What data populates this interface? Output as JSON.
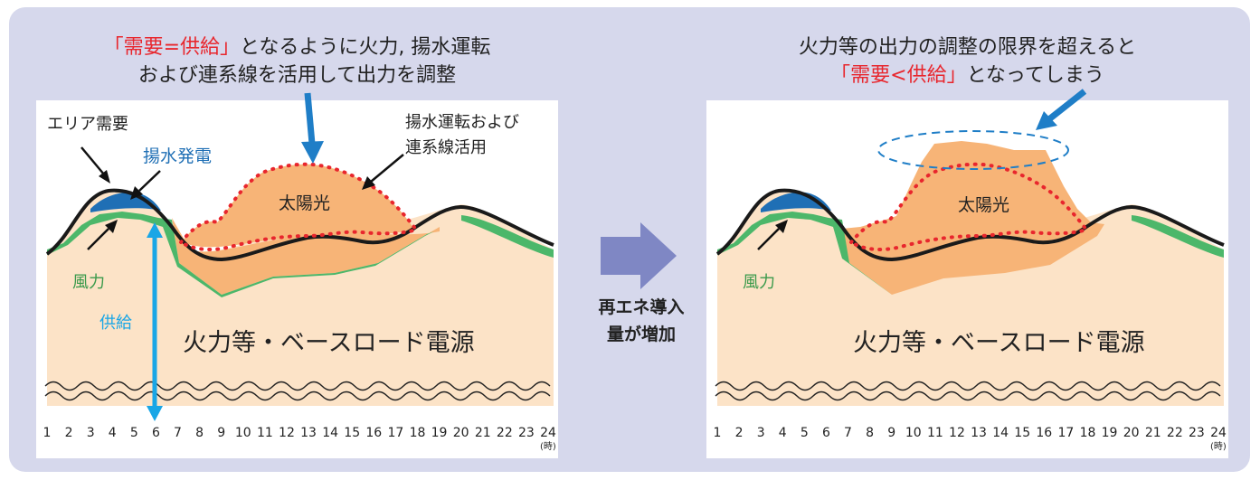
{
  "left": {
    "caption": {
      "line1_red": "「需要=供給」",
      "line1_rest": "となるように火力, 揚水運転",
      "line2": "および連系線を活用して出力を調整"
    },
    "labels": {
      "area_demand": "エリア需要",
      "pumped_generation": "揚水発電",
      "pumped_operation_line1": "揚水運転および",
      "pumped_operation_line2": "連系線活用",
      "solar": "太陽光",
      "wind": "風力",
      "supply": "供給",
      "thermal": "火力等・ベースロード電源"
    }
  },
  "middle": {
    "line1": "再エネ導入",
    "line2": "量が増加"
  },
  "right": {
    "caption": {
      "line1": "火力等の出力の調整の限界を超えると",
      "line2_red": "「需要<供給」",
      "line2_rest": "となってしまう"
    },
    "labels": {
      "solar": "太陽光",
      "wind": "風力",
      "thermal": "火力等・ベースロード電源"
    }
  },
  "axis": {
    "hours": [
      "1",
      "2",
      "3",
      "4",
      "5",
      "6",
      "7",
      "8",
      "9",
      "10",
      "11",
      "12",
      "13",
      "14",
      "15",
      "16",
      "17",
      "18",
      "19",
      "20",
      "21",
      "22",
      "23",
      "24"
    ],
    "unit": "(時)"
  },
  "colors": {
    "background_frame": "#d6d8ec",
    "base": "#fce3c7",
    "solar": "#f7b477",
    "wind": "#4cb76a",
    "pumped": "#1f6fb5",
    "dotted_line": "#e8262d",
    "supply_arrow": "#19a6e6",
    "caption_red": "#e8262d",
    "ellipse": "#1f7ec7"
  }
}
